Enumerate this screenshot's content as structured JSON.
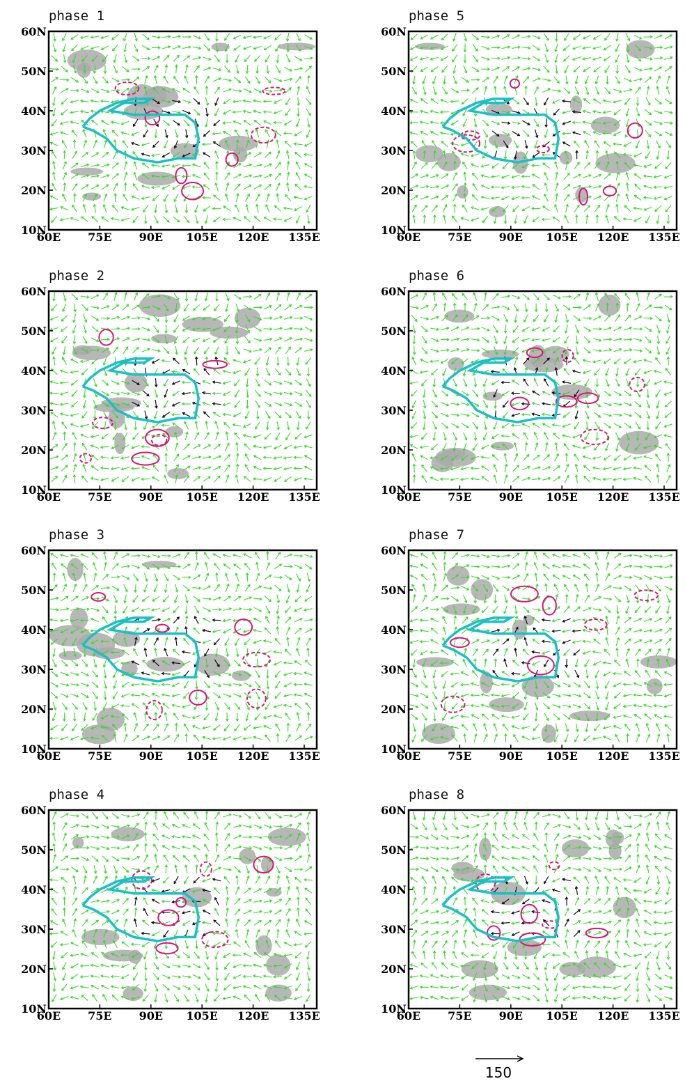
{
  "panels": [
    {
      "title": "phase 1"
    },
    {
      "title": "phase 5"
    },
    {
      "title": "phase 2"
    },
    {
      "title": "phase 6"
    },
    {
      "title": "phase 3"
    },
    {
      "title": "phase 7"
    },
    {
      "title": "phase 4"
    },
    {
      "title": "phase 8"
    }
  ],
  "lat_ticks": [
    "10N",
    "20N",
    "30N",
    "40N",
    "50N",
    "60N"
  ],
  "lon_ticks": [
    "60E",
    "75E",
    "90E",
    "105E",
    "120E",
    "135E"
  ],
  "reference_vector": {
    "label": "150"
  }
}
